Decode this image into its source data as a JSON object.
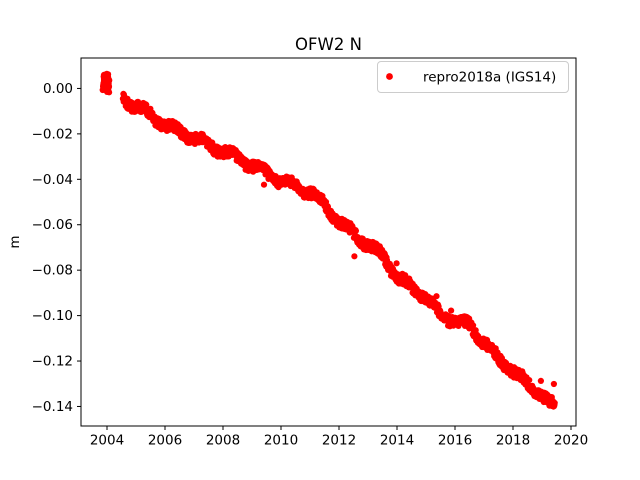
{
  "chart_data": {
    "type": "scatter",
    "title": "OFW2 N",
    "xlabel": "",
    "ylabel": "m",
    "legend": {
      "label": "repro2018a (IGS14)",
      "marker_color": "#ff0000",
      "location": "upper right",
      "border_color": "#cccccc",
      "background": "#ffffff"
    },
    "axis": {
      "xlim": [
        2003.103,
        2020.172
      ],
      "ylim": [
        -0.1486,
        0.0134
      ],
      "x_ticks": [
        2004,
        2006,
        2008,
        2010,
        2012,
        2014,
        2016,
        2018,
        2020
      ],
      "x_tick_labels": [
        "2004",
        "2006",
        "2008",
        "2010",
        "2012",
        "2014",
        "2016",
        "2018",
        "2020"
      ],
      "y_ticks": [
        0.0,
        -0.02,
        -0.04,
        -0.06,
        -0.08,
        -0.1,
        -0.12,
        -0.14
      ],
      "y_tick_labels": [
        "0.00",
        "−0.02",
        "−0.04",
        "−0.06",
        "−0.08",
        "−0.10",
        "−0.12",
        "−0.14"
      ],
      "grid": false,
      "spine_color": "#000000"
    },
    "series": [
      {
        "name": "repro2018a (IGS14)",
        "color": "#ff0000",
        "marker": "point",
        "marker_px": 6.2,
        "segments": [
          {
            "kind": "cluster",
            "x_start": 2003.85,
            "x_end": 2004.08,
            "y_min": -0.0018,
            "y_max": 0.007,
            "n": 60
          },
          {
            "kind": "noisy_trend",
            "x_step": 0.012,
            "noise_half_range": 0.0023,
            "seasonal_amp": 0.0012,
            "outlier_rate": 0.005,
            "trend_anchors": [
              [
                2004.55,
                -0.004
              ],
              [
                2004.8,
                -0.0068
              ],
              [
                2005.0,
                -0.0078
              ],
              [
                2005.5,
                -0.0115
              ],
              [
                2006.0,
                -0.0165
              ],
              [
                2006.5,
                -0.019
              ],
              [
                2007.0,
                -0.0218
              ],
              [
                2007.5,
                -0.0245
              ],
              [
                2008.0,
                -0.028
              ],
              [
                2008.5,
                -0.0302
              ],
              [
                2009.0,
                -0.0342
              ],
              [
                2009.5,
                -0.037
              ],
              [
                2010.0,
                -0.0412
              ],
              [
                2010.5,
                -0.043
              ],
              [
                2011.0,
                -0.0456
              ],
              [
                2011.5,
                -0.051
              ],
              [
                2012.0,
                -0.0588
              ],
              [
                2012.5,
                -0.0637
              ],
              [
                2013.0,
                -0.069
              ],
              [
                2013.5,
                -0.073
              ],
              [
                2014.0,
                -0.0832
              ],
              [
                2014.5,
                -0.0874
              ],
              [
                2015.0,
                -0.0918
              ],
              [
                2015.5,
                -0.0997
              ],
              [
                2016.0,
                -0.1024
              ],
              [
                2016.5,
                -0.104
              ],
              [
                2017.0,
                -0.112
              ],
              [
                2017.5,
                -0.119
              ],
              [
                2018.0,
                -0.1245
              ],
              [
                2018.5,
                -0.13
              ],
              [
                2019.0,
                -0.135
              ],
              [
                2019.25,
                -0.1385
              ],
              [
                2019.45,
                -0.14
              ]
            ]
          }
        ]
      }
    ]
  }
}
